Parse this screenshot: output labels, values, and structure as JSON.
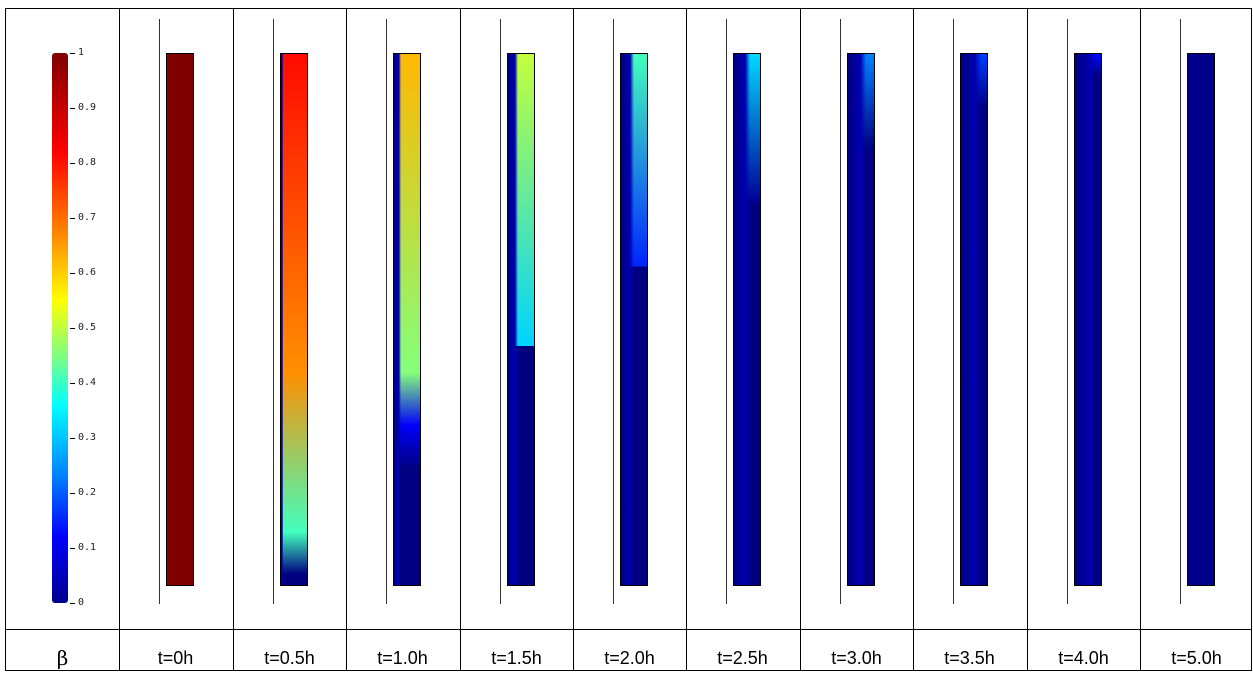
{
  "colorbar": {
    "tick_labels": [
      "1",
      "0.9",
      "0.8",
      "0.7",
      "0.6",
      "0.5",
      "0.4",
      "0.3",
      "0.2",
      "0.1",
      "0"
    ],
    "range": [
      0,
      1
    ],
    "colormap": "jet"
  },
  "symbol_label": "β",
  "panels": [
    {
      "time_label": "t=0h",
      "depletion_level": 0.0
    },
    {
      "time_label": "t=0.5h",
      "depletion_level": 0.1
    },
    {
      "time_label": "t=1.0h",
      "depletion_level": 0.3
    },
    {
      "time_label": "t=1.5h",
      "depletion_level": 0.45
    },
    {
      "time_label": "t=2.0h",
      "depletion_level": 0.6
    },
    {
      "time_label": "t=2.5h",
      "depletion_level": 0.72
    },
    {
      "time_label": "t=3.0h",
      "depletion_level": 0.82
    },
    {
      "time_label": "t=3.5h",
      "depletion_level": 0.9
    },
    {
      "time_label": "t=4.0h",
      "depletion_level": 0.96
    },
    {
      "time_label": "t=5.0h",
      "depletion_level": 1.0
    }
  ],
  "colors": {
    "max": "#7f0000",
    "min": "#00008b"
  }
}
